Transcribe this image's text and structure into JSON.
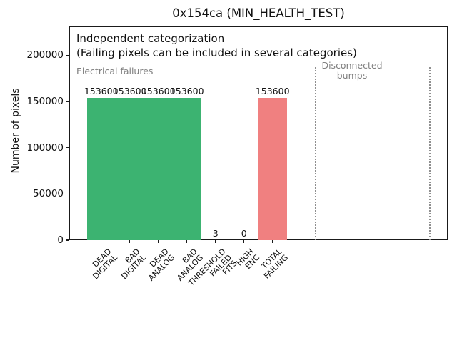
{
  "chart_data": {
    "type": "bar",
    "title": "0x154ca (MIN_HEALTH_TEST)",
    "ylabel": "Number of pixels",
    "xlabel": "",
    "ylim": [
      0,
      231000
    ],
    "yticks": [
      0,
      50000,
      100000,
      150000,
      200000
    ],
    "grid": false,
    "legend": "none",
    "categories": [
      "DEAD DIGITAL",
      "BAD DIGITAL",
      "DEAD ANALOG",
      "BAD ANALOG",
      "THRESHOLD FAILED FITS",
      "HIGH ENC",
      "TOTAL FAILING"
    ],
    "category_label_lines": [
      [
        "DEAD",
        "DIGITAL"
      ],
      [
        "BAD",
        "DIGITAL"
      ],
      [
        "DEAD",
        "ANALOG"
      ],
      [
        "BAD",
        "ANALOG"
      ],
      [
        "THRESHOLD",
        "FAILED",
        "FITS"
      ],
      [
        "HIGH",
        "ENC"
      ],
      [
        "TOTAL",
        "FAILING"
      ]
    ],
    "values": [
      153600,
      153600,
      153600,
      153600,
      3,
      0,
      153600
    ],
    "value_labels": [
      "153600",
      "153600",
      "153600",
      "153600",
      "3",
      "0",
      "153600"
    ],
    "bar_colors": [
      "#3cb371",
      "#3cb371",
      "#3cb371",
      "#3cb371",
      "#3cb371",
      "#3cb371",
      "#f08080"
    ],
    "separators_x_categories": [
      7.5,
      11.5
    ],
    "annotations": {
      "note_line1": "Independent categorization",
      "note_line2": "(Failing pixels can be included in several categories)",
      "region_left_label": "Electrical failures",
      "region_right_label_lines": [
        "Disconnected",
        "bumps"
      ]
    },
    "colors": {
      "bar_green": "#3cb371",
      "bar_red": "#f08080",
      "region_label_gray": "#7f7f7f",
      "separator_gray": "#8f8f8f",
      "axis_black": "#1a1a1a"
    }
  }
}
